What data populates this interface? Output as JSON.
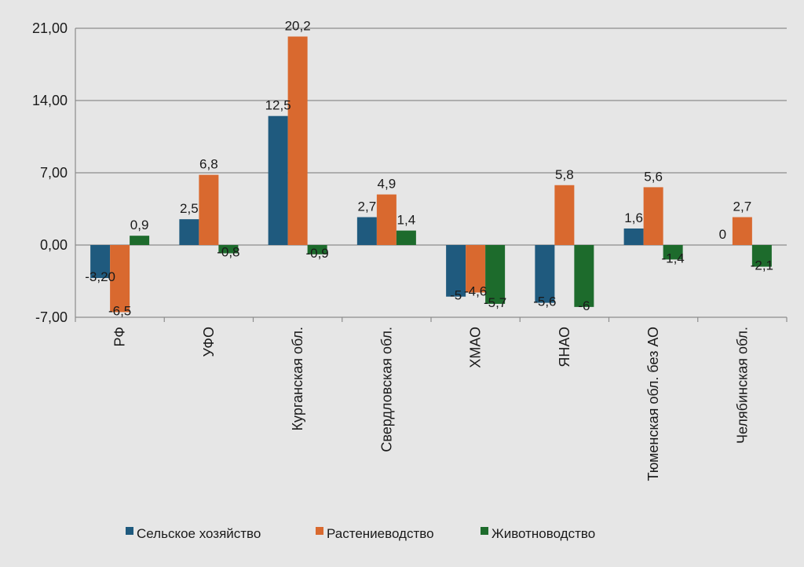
{
  "chart_data": {
    "type": "bar",
    "categories": [
      "РФ",
      "УФО",
      "Курганская обл.",
      "Свердловская обл.",
      "ХМАО",
      "ЯНАО",
      "Тюменская обл. без АО",
      "Челябинская обл."
    ],
    "series": [
      {
        "name": "Сельское хозяйство",
        "color": "#1f5a7e",
        "values": [
          -3.2,
          2.5,
          12.5,
          2.7,
          -5,
          -5.6,
          1.6,
          0
        ],
        "labels": [
          "-3,20",
          "2,5",
          "12,5",
          "2,7",
          "-5",
          "-5,6",
          "1,6",
          "0"
        ]
      },
      {
        "name": "Растениеводство",
        "color": "#d9692f",
        "values": [
          -6.5,
          6.8,
          20.2,
          4.9,
          -4.6,
          5.8,
          5.6,
          2.7
        ],
        "labels": [
          "-6,5",
          "6,8",
          "20,2",
          "4,9",
          "-4,6",
          "5,8",
          "5,6",
          "2,7"
        ]
      },
      {
        "name": "Животноводство",
        "color": "#1d6b2c",
        "values": [
          0.9,
          -0.8,
          -0.9,
          1.4,
          -5.7,
          -6,
          -1.4,
          -2.1
        ],
        "labels": [
          "0,9",
          "-0,8",
          "-0,9",
          "1,4",
          "-5,7",
          "-6",
          "-1,4",
          "-2,1"
        ]
      }
    ],
    "yticks": [
      "21,00",
      "14,00",
      "7,00",
      "0,00",
      "-7,00"
    ],
    "ytick_values": [
      21,
      14,
      7,
      0,
      -7
    ],
    "ylim": [
      -7,
      21
    ],
    "grid": true,
    "legend_position": "bottom"
  }
}
